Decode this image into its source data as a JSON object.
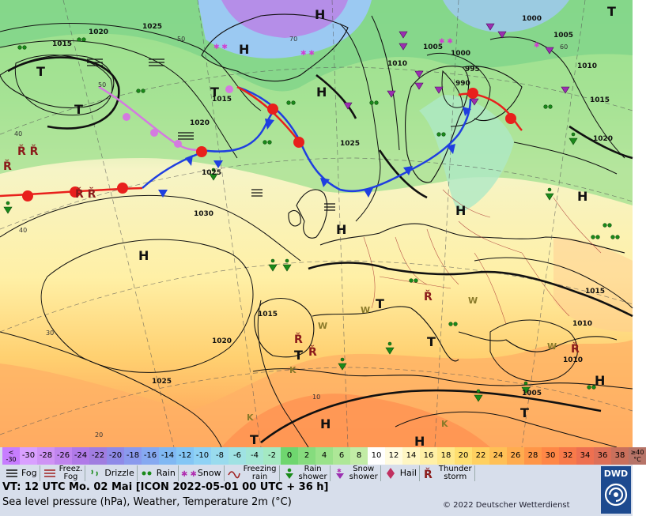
{
  "map": {
    "isobar_labels": [
      "1020",
      "1025",
      "1015",
      "1000",
      "1005",
      "1010",
      "995",
      "990",
      "1025",
      "1015",
      "1020",
      "1030",
      "1025",
      "1015",
      "1020",
      "1025",
      "1010",
      "1015",
      "1010",
      "1005",
      "1015",
      "1000",
      "1005",
      "1010",
      "1020"
    ],
    "lat_labels": [
      "50",
      "50",
      "40",
      "40",
      "30",
      "20",
      "10",
      "60",
      "70"
    ],
    "high_low_labels": [
      "H",
      "T",
      "T",
      "H",
      "T",
      "H",
      "H",
      "H",
      "T",
      "T",
      "H",
      "T",
      "H",
      "T",
      "H",
      "T",
      "T",
      "H",
      "H"
    ],
    "weather_letters": [
      "W",
      "W",
      "W",
      "W",
      "K",
      "K",
      "K"
    ]
  },
  "temperature_scale": {
    "cells": [
      {
        "label": "<\n-30",
        "color": "#c77dff"
      },
      {
        "label": "-30",
        "color": "#d9a0ff"
      },
      {
        "label": "-28",
        "color": "#cf93f5"
      },
      {
        "label": "-26",
        "color": "#c085ef"
      },
      {
        "label": "-24",
        "color": "#b07ae8"
      },
      {
        "label": "-22",
        "color": "#a07de0"
      },
      {
        "label": "-20",
        "color": "#8f8ae8"
      },
      {
        "label": "-18",
        "color": "#8a9aee"
      },
      {
        "label": "-16",
        "color": "#86a9f1"
      },
      {
        "label": "-14",
        "color": "#80b8f3"
      },
      {
        "label": "-12",
        "color": "#84c6f5"
      },
      {
        "label": "-10",
        "color": "#8fd2f5"
      },
      {
        "label": "-8",
        "color": "#99dbee"
      },
      {
        "label": "-6",
        "color": "#9fe2e3"
      },
      {
        "label": "-4",
        "color": "#a2e6d4"
      },
      {
        "label": "-2",
        "color": "#a4e9c2"
      },
      {
        "label": "0",
        "color": "#6fd66f"
      },
      {
        "label": "2",
        "color": "#86dc7e"
      },
      {
        "label": "4",
        "color": "#9ae28a"
      },
      {
        "label": "6",
        "color": "#aee797"
      },
      {
        "label": "8",
        "color": "#c2eca6"
      },
      {
        "label": "10",
        "color": "#ffffff"
      },
      {
        "label": "12",
        "color": "#fffbe0"
      },
      {
        "label": "14",
        "color": "#fff6c2"
      },
      {
        "label": "16",
        "color": "#fff0a6"
      },
      {
        "label": "18",
        "color": "#ffe98c"
      },
      {
        "label": "20",
        "color": "#ffdf70"
      },
      {
        "label": "22",
        "color": "#ffd060"
      },
      {
        "label": "24",
        "color": "#ffc056"
      },
      {
        "label": "26",
        "color": "#ffac4f"
      },
      {
        "label": "28",
        "color": "#ff9648"
      },
      {
        "label": "30",
        "color": "#ff8746"
      },
      {
        "label": "32",
        "color": "#f87a4a"
      },
      {
        "label": "34",
        "color": "#ee7050"
      },
      {
        "label": "36",
        "color": "#dd6f57"
      },
      {
        "label": "38",
        "color": "#c9705c"
      },
      {
        "label": "≥40\n°C",
        "color": "#b77468"
      }
    ]
  },
  "legend": {
    "items": [
      {
        "label": "Fog",
        "icon": "fog-icon"
      },
      {
        "label": "Freez.\nFog",
        "icon": "freezing-fog-icon"
      },
      {
        "label": "Drizzle",
        "icon": "drizzle-icon"
      },
      {
        "label": "Rain",
        "icon": "rain-icon"
      },
      {
        "label": "Snow",
        "icon": "snow-icon"
      },
      {
        "label": "Freezing\nrain",
        "icon": "freezing-rain-icon"
      },
      {
        "label": "Rain\nshower",
        "icon": "rain-shower-icon"
      },
      {
        "label": "Snow\nshower",
        "icon": "snow-shower-icon"
      },
      {
        "label": "Hail",
        "icon": "hail-icon"
      },
      {
        "label": "Thunder\nstorm",
        "icon": "thunderstorm-icon"
      }
    ]
  },
  "footer": {
    "valid_time": "VT: 12 UTC Mo.  02 Mai [ICON 2022-05-01  00 UTC + 36 h]",
    "description": "Sea level pressure (hPa), Weather, Temperature 2m (°C)",
    "copyright": "© 2022 Deutscher Wetterdienst",
    "logo_text": "DWD"
  },
  "colors": {
    "warm_front": "#e8201c",
    "cold_front": "#1f3fe0",
    "occluded_front": "#d47ae0",
    "brand": "#1d4a8f"
  }
}
